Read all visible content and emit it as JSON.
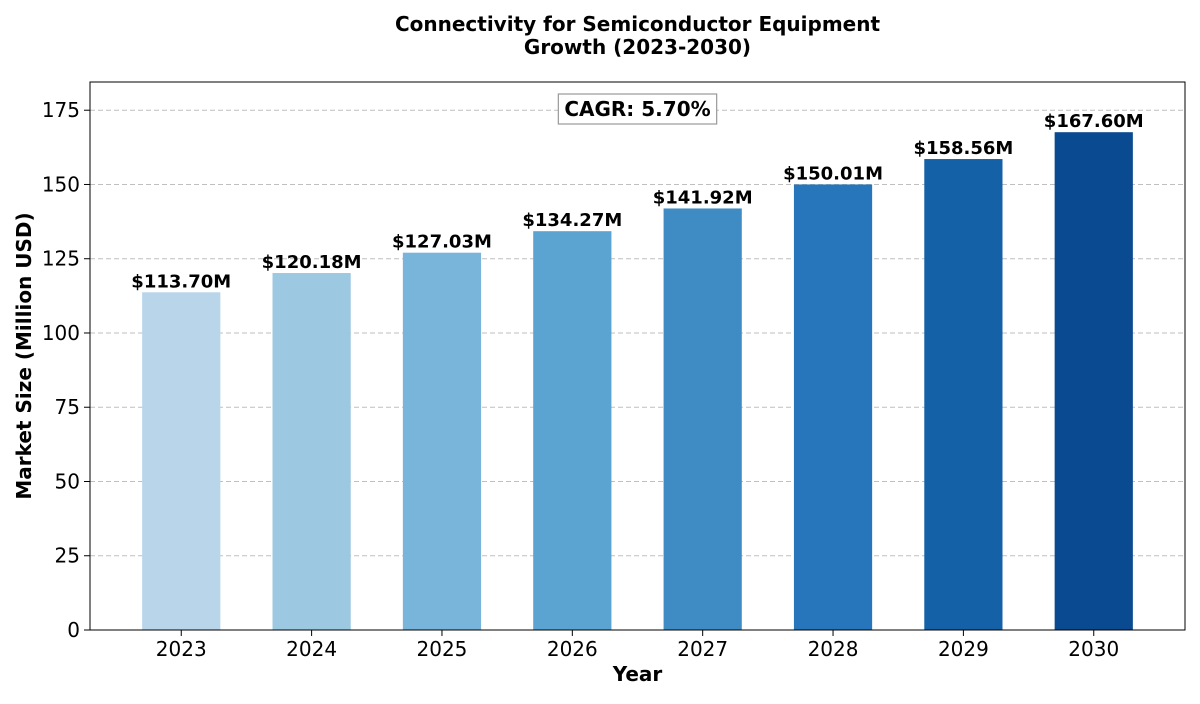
{
  "chart_data": {
    "type": "bar",
    "title": "Connectivity for Semiconductor Equipment Growth (2023-2030)",
    "title_lines": [
      "Connectivity for Semiconductor Equipment",
      "Growth (2023-2030)"
    ],
    "xlabel": "Year",
    "ylabel": "Market Size (Million USD)",
    "categories": [
      "2023",
      "2024",
      "2025",
      "2026",
      "2027",
      "2028",
      "2029",
      "2030"
    ],
    "values": [
      113.7,
      120.18,
      127.03,
      134.27,
      141.92,
      150.01,
      158.56,
      167.6
    ],
    "data_labels": [
      "$113.70M",
      "$120.18M",
      "$127.03M",
      "$134.27M",
      "$141.92M",
      "$150.01M",
      "$158.56M",
      "$167.60M"
    ],
    "ylim": [
      0,
      184.5
    ],
    "yticks": [
      0,
      25,
      50,
      75,
      100,
      125,
      150,
      175
    ],
    "ytick_labels": [
      "0",
      "25",
      "50",
      "75",
      "100",
      "125",
      "150",
      "175"
    ],
    "grid": "y-dashed",
    "colors": [
      "#b9d5ea",
      "#9cc8e2",
      "#79b5da",
      "#5ba3d0",
      "#3f8cc5",
      "#2776bb",
      "#1461a8",
      "#0a4a91"
    ],
    "annotation": "CAGR: 5.70%"
  }
}
